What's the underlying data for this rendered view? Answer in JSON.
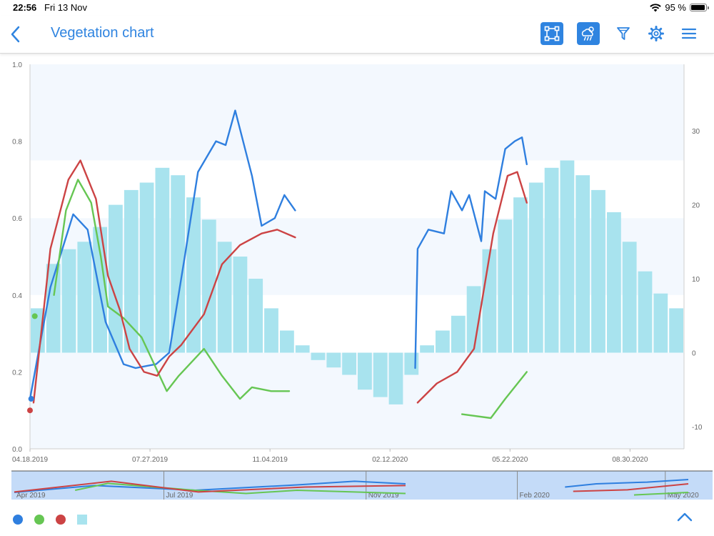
{
  "status_bar": {
    "time": "22:56",
    "date": "Fri 13 Nov",
    "battery": "95 %",
    "battery_level": 0.95
  },
  "header": {
    "title": "Vegetation chart"
  },
  "icons": {
    "back": "chevron-left-icon",
    "area_select": "polygon-select-icon",
    "weather": "weather-rain-icon",
    "filter": "filter-icon",
    "settings": "gear-icon",
    "menu": "hamburger-menu-icon"
  },
  "colors": {
    "accent": "#2f84e0",
    "blue_series": "#2f7fdf",
    "green_series": "#66c653",
    "red_series": "#cc4344",
    "bars": "#a8e3ee",
    "band": "#eef5fd"
  },
  "chart_data": [
    {
      "type": "line",
      "title": "",
      "x_tick_labels": [
        "04.18.2019",
        "07.27.2019",
        "11.04.2019",
        "02.12.2020",
        "05.22.2020",
        "08.30.2020"
      ],
      "x_range": [
        "2019-04-18",
        "2020-10-14"
      ],
      "y_left": {
        "ticks": [
          "0.0",
          "0.2",
          "0.4",
          "0.6",
          "0.8",
          "1.0"
        ],
        "range": [
          0,
          1
        ]
      },
      "y_right": {
        "ticks": [
          "-10",
          "0",
          "10",
          "20",
          "30"
        ],
        "range": [
          -13,
          39
        ]
      },
      "grid": false,
      "series": [
        {
          "color": "#2f7fdf",
          "axis": "left",
          "segments": [
            [
              [
                "2019-04-18",
                0.13
              ],
              [
                "2019-05-05",
                0.42
              ],
              [
                "2019-05-24",
                0.61
              ],
              [
                "2019-06-05",
                0.57
              ],
              [
                "2019-06-20",
                0.33
              ],
              [
                "2019-07-05",
                0.22
              ],
              [
                "2019-07-15",
                0.21
              ],
              [
                "2019-08-01",
                0.22
              ],
              [
                "2019-08-12",
                0.25
              ],
              [
                "2019-08-25",
                0.5
              ],
              [
                "2019-09-05",
                0.72
              ],
              [
                "2019-09-20",
                0.8
              ],
              [
                "2019-09-28",
                0.79
              ],
              [
                "2019-10-06",
                0.88
              ],
              [
                "2019-10-20",
                0.71
              ],
              [
                "2019-10-28",
                0.58
              ],
              [
                "2019-11-08",
                0.6
              ],
              [
                "2019-11-16",
                0.66
              ],
              [
                "2019-11-25",
                0.62
              ]
            ],
            [
              [
                "2020-03-04",
                0.21
              ],
              [
                "2020-03-06",
                0.52
              ],
              [
                "2020-03-15",
                0.57
              ],
              [
                "2020-03-28",
                0.56
              ],
              [
                "2020-04-03",
                0.67
              ],
              [
                "2020-04-12",
                0.62
              ],
              [
                "2020-04-18",
                0.66
              ],
              [
                "2020-04-28",
                0.54
              ],
              [
                "2020-05-01",
                0.67
              ],
              [
                "2020-05-10",
                0.65
              ],
              [
                "2020-05-18",
                0.78
              ],
              [
                "2020-05-26",
                0.8
              ],
              [
                "2020-06-01",
                0.81
              ],
              [
                "2020-06-05",
                0.74
              ]
            ]
          ]
        },
        {
          "color": "#66c653",
          "axis": "left",
          "segments": [
            [
              [
                "2019-05-08",
                0.4
              ],
              [
                "2019-05-18",
                0.62
              ],
              [
                "2019-05-28",
                0.7
              ],
              [
                "2019-06-08",
                0.64
              ],
              [
                "2019-06-16",
                0.5
              ],
              [
                "2019-06-22",
                0.37
              ],
              [
                "2019-07-05",
                0.34
              ],
              [
                "2019-07-20",
                0.29
              ],
              [
                "2019-08-01",
                0.21
              ],
              [
                "2019-08-10",
                0.15
              ],
              [
                "2019-08-20",
                0.19
              ],
              [
                "2019-09-10",
                0.26
              ],
              [
                "2019-09-25",
                0.19
              ],
              [
                "2019-10-10",
                0.13
              ],
              [
                "2019-10-20",
                0.16
              ],
              [
                "2019-11-05",
                0.15
              ],
              [
                "2019-11-20",
                0.15
              ]
            ],
            [
              [
                "2020-04-12",
                0.09
              ],
              [
                "2020-05-06",
                0.08
              ],
              [
                "2020-05-18",
                0.13
              ],
              [
                "2020-06-05",
                0.2
              ]
            ]
          ]
        },
        {
          "color": "#cc4344",
          "axis": "left",
          "segments": [
            [
              [
                "2019-04-21",
                0.12
              ],
              [
                "2019-05-05",
                0.52
              ],
              [
                "2019-05-20",
                0.7
              ],
              [
                "2019-05-30",
                0.75
              ],
              [
                "2019-06-12",
                0.65
              ],
              [
                "2019-06-22",
                0.45
              ],
              [
                "2019-07-02",
                0.36
              ],
              [
                "2019-07-10",
                0.26
              ],
              [
                "2019-07-22",
                0.2
              ],
              [
                "2019-08-02",
                0.19
              ],
              [
                "2019-08-12",
                0.24
              ],
              [
                "2019-08-22",
                0.27
              ],
              [
                "2019-09-10",
                0.35
              ],
              [
                "2019-09-25",
                0.48
              ],
              [
                "2019-10-10",
                0.53
              ],
              [
                "2019-10-28",
                0.56
              ],
              [
                "2019-11-10",
                0.57
              ],
              [
                "2019-11-25",
                0.55
              ]
            ],
            [
              [
                "2020-03-06",
                0.12
              ],
              [
                "2020-03-22",
                0.17
              ],
              [
                "2020-04-08",
                0.2
              ],
              [
                "2020-04-22",
                0.26
              ],
              [
                "2020-05-08",
                0.56
              ],
              [
                "2020-05-20",
                0.71
              ],
              [
                "2020-05-28",
                0.72
              ],
              [
                "2020-06-05",
                0.64
              ]
            ]
          ]
        },
        {
          "color": "#a8e3ee",
          "axis": "right",
          "kind": "bar",
          "values": [
            6,
            12,
            14,
            15,
            17,
            20,
            22,
            23,
            25,
            24,
            21,
            18,
            15,
            13,
            10,
            6,
            3,
            1,
            -1,
            -2,
            -3,
            -5,
            -6,
            -7,
            -3,
            1,
            3,
            5,
            9,
            14,
            18,
            21,
            23,
            25,
            26,
            24,
            22,
            19,
            15,
            11,
            8,
            6
          ]
        }
      ],
      "scatter_points": [
        {
          "color": "#2f7fdf",
          "x": "2019-04-19",
          "y": 0.13
        },
        {
          "color": "#66c653",
          "x": "2019-04-22",
          "y": 0.345
        },
        {
          "color": "#cc4344",
          "x": "2019-04-18",
          "y": 0.1
        }
      ]
    },
    {
      "type": "line",
      "x_tick_labels": [
        "Apr 2019",
        "Jul 2019",
        "Nov 2019",
        "Feb 2020",
        "May 2020"
      ],
      "x_range": [
        "2019-04-01",
        "2020-05-15"
      ],
      "series": [
        {
          "color": "#2f7fdf",
          "segments": [
            [
              [
                "2019-04-01",
                0.2
              ],
              [
                "2019-05-20",
                0.52
              ],
              [
                "2019-07-20",
                0.3
              ],
              [
                "2019-09-20",
                0.55
              ],
              [
                "2019-10-25",
                0.72
              ],
              [
                "2019-11-25",
                0.6
              ]
            ],
            [
              [
                "2020-03-01",
                0.45
              ],
              [
                "2020-03-20",
                0.6
              ],
              [
                "2020-04-20",
                0.68
              ],
              [
                "2020-05-15",
                0.8
              ]
            ]
          ]
        },
        {
          "color": "#66c653",
          "segments": [
            [
              [
                "2019-05-08",
                0.3
              ],
              [
                "2019-05-28",
                0.62
              ],
              [
                "2019-07-20",
                0.3
              ],
              [
                "2019-08-20",
                0.15
              ],
              [
                "2019-09-20",
                0.3
              ],
              [
                "2019-11-25",
                0.15
              ]
            ],
            [
              [
                "2020-04-12",
                0.08
              ],
              [
                "2020-05-15",
                0.2
              ]
            ]
          ]
        },
        {
          "color": "#cc4344",
          "segments": [
            [
              [
                "2019-04-01",
                0.22
              ],
              [
                "2019-05-30",
                0.72
              ],
              [
                "2019-07-22",
                0.22
              ],
              [
                "2019-09-25",
                0.45
              ],
              [
                "2019-11-25",
                0.52
              ]
            ],
            [
              [
                "2020-03-06",
                0.25
              ],
              [
                "2020-04-08",
                0.32
              ],
              [
                "2020-05-15",
                0.6
              ]
            ]
          ]
        }
      ]
    }
  ]
}
